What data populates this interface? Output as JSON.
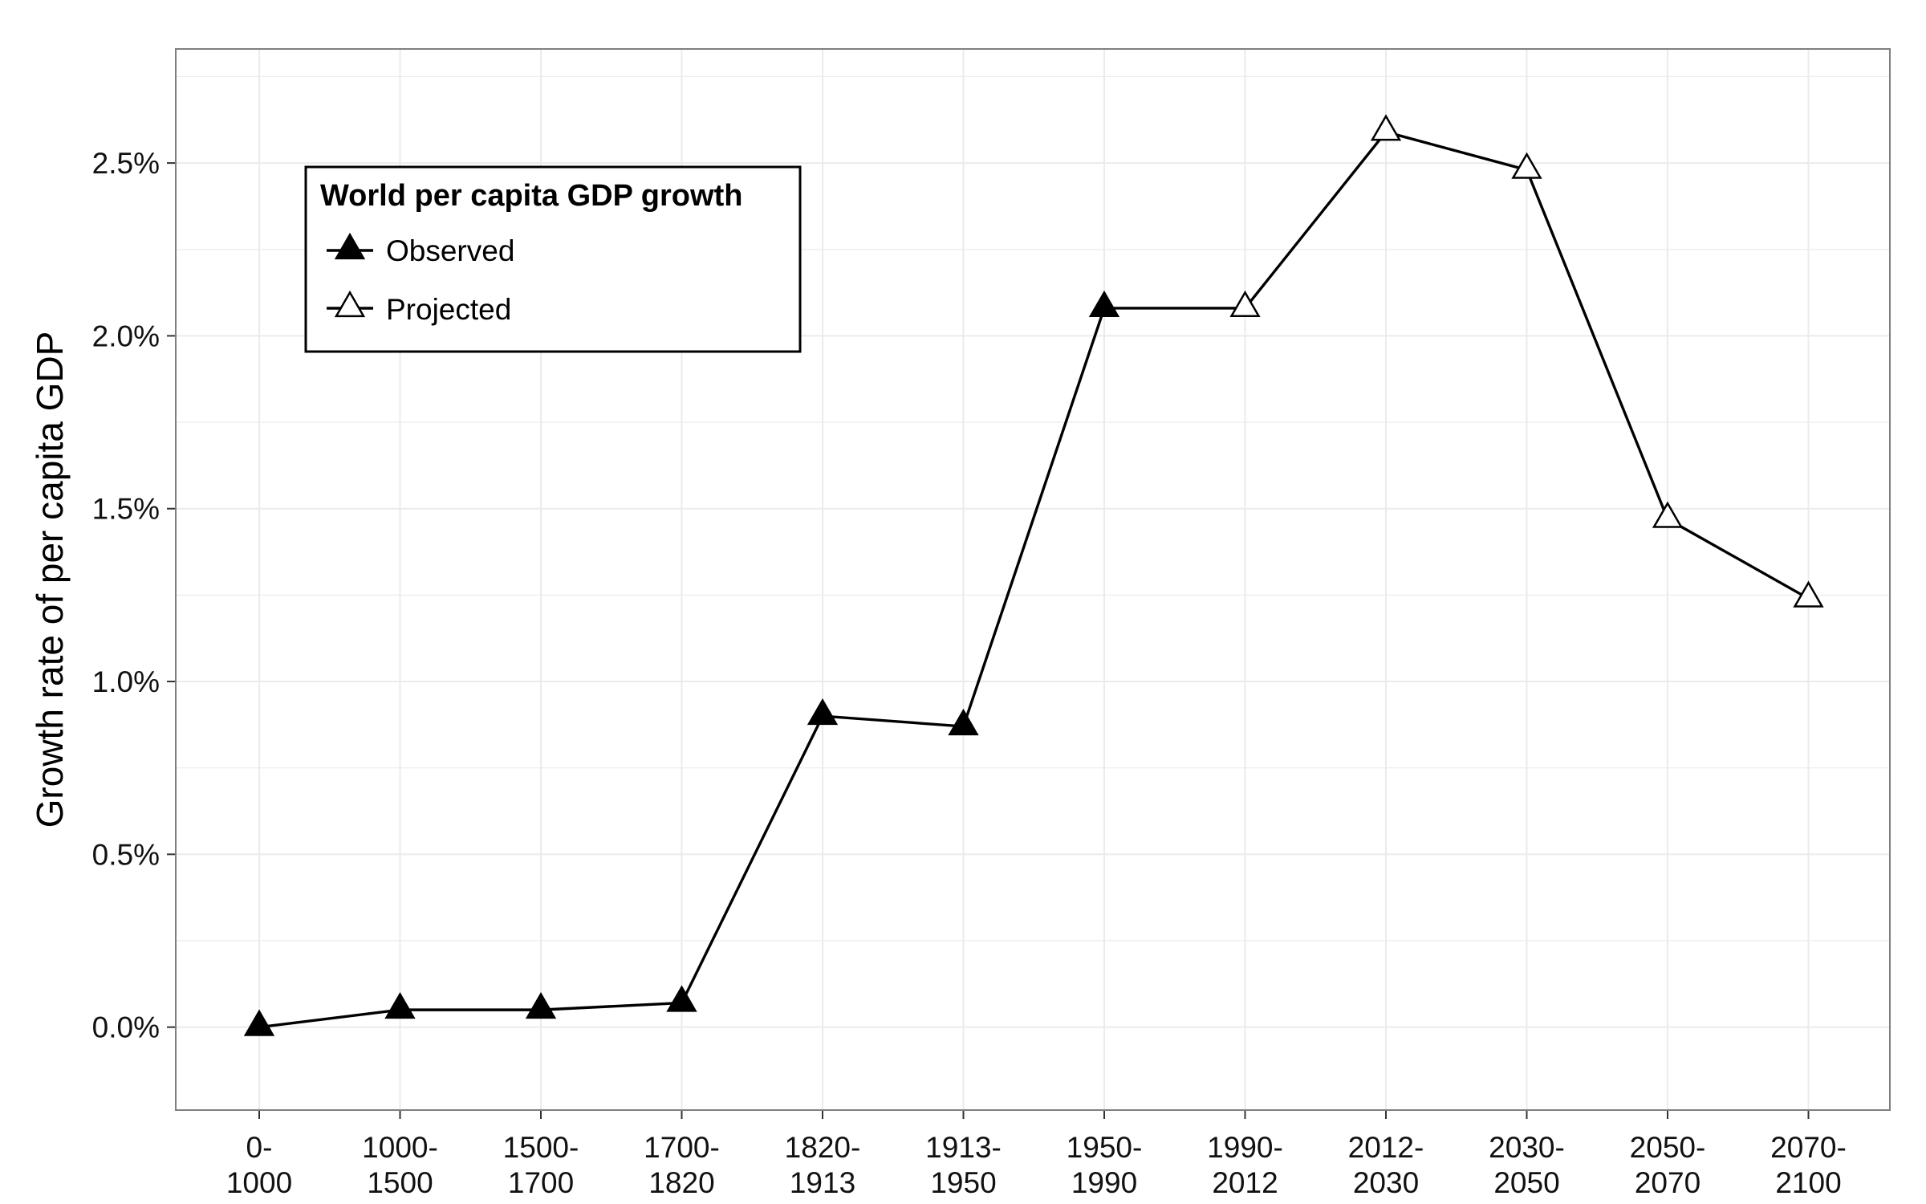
{
  "chart_data": {
    "type": "line",
    "title": "",
    "xlabel": "",
    "ylabel": "Growth rate of per capita GDP",
    "categories": [
      "0-\n1000",
      "1000-\n1500",
      "1500-\n1700",
      "1700-\n1820",
      "1820-\n1913",
      "1913-\n1950",
      "1950-\n1990",
      "1990-\n2012",
      "2012-\n2030",
      "2030-\n2050",
      "2050-\n2070",
      "2070-\n2100"
    ],
    "values": [
      0.0,
      0.05,
      0.05,
      0.07,
      0.9,
      0.87,
      2.08,
      2.08,
      2.59,
      2.48,
      1.47,
      1.24
    ],
    "status": [
      "Observed",
      "Observed",
      "Observed",
      "Observed",
      "Observed",
      "Observed",
      "Observed",
      "Projected",
      "Projected",
      "Projected",
      "Projected",
      "Projected"
    ],
    "y_ticks": [
      0.0,
      0.5,
      1.0,
      1.5,
      2.0,
      2.5
    ],
    "y_tick_labels": [
      "0.0%",
      "0.5%",
      "1.0%",
      "1.5%",
      "2.0%",
      "2.5%"
    ],
    "ylim": [
      -0.24,
      2.83
    ],
    "grid": true,
    "legend": {
      "title": "World per capita GDP growth",
      "placement": "top-left",
      "entries": [
        {
          "label": "Observed",
          "marker": "filled-triangle"
        },
        {
          "label": "Projected",
          "marker": "open-triangle"
        }
      ]
    },
    "colors": {
      "line": "#000000",
      "grid": "#ebebeb",
      "panel_border": "#7f7f7f"
    }
  }
}
